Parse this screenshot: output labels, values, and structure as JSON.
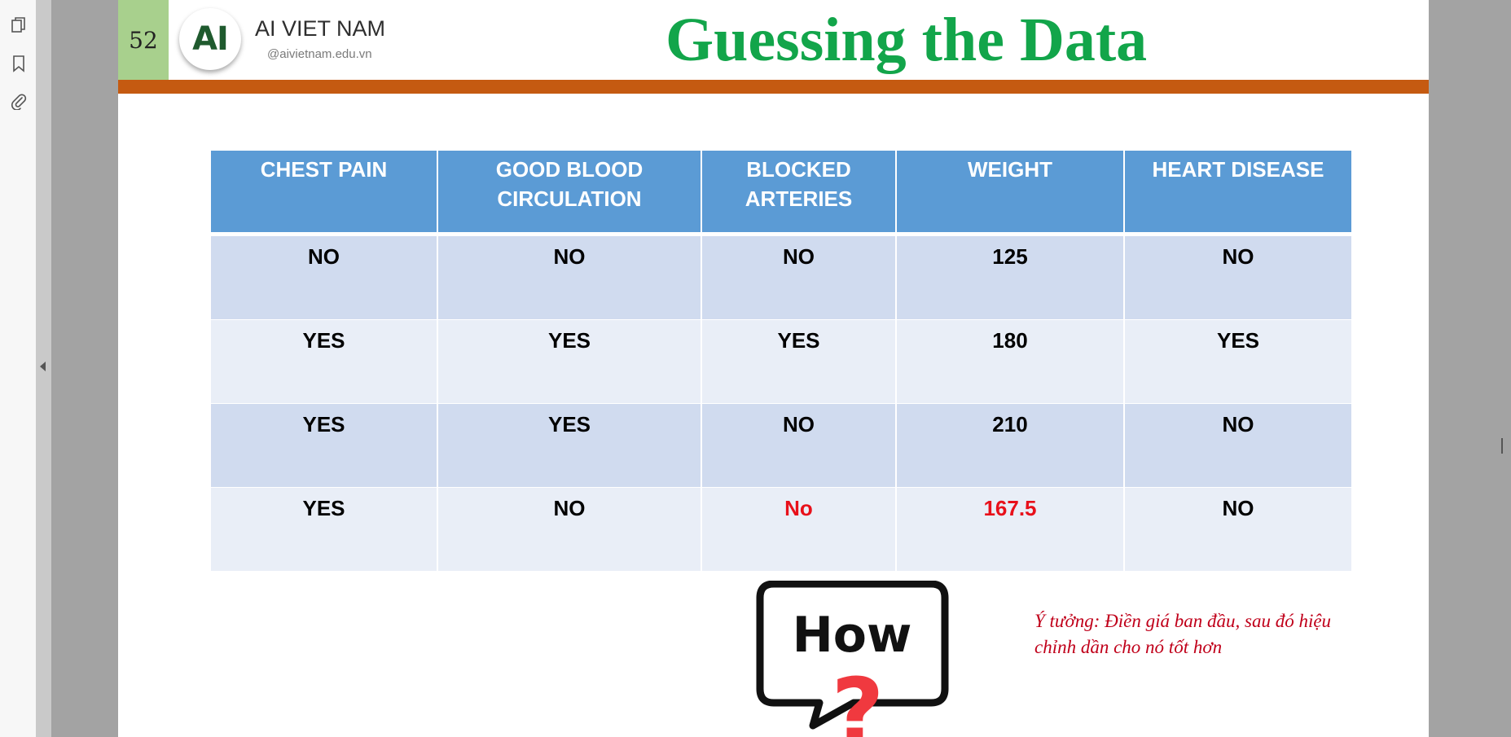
{
  "viewer": {
    "sidebar_icons": [
      "pages-icon",
      "bookmark-icon",
      "paperclip-icon"
    ]
  },
  "slide": {
    "page_number": "52",
    "logo_text": "AI",
    "brand_name": "AI VIET NAM",
    "brand_handle": "@aivietnam.edu.vn",
    "title": "Guessing the Data",
    "table": {
      "headers": [
        "CHEST PAIN",
        "GOOD BLOOD CIRCULATION",
        "BLOCKED ARTERIES",
        "WEIGHT",
        "HEART DISEASE"
      ],
      "rows": [
        [
          "NO",
          "NO",
          "NO",
          "125",
          "NO"
        ],
        [
          "YES",
          "YES",
          "YES",
          "180",
          "YES"
        ],
        [
          "YES",
          "YES",
          "NO",
          "210",
          "NO"
        ],
        [
          "YES",
          "NO",
          "No",
          "167.5",
          "NO"
        ]
      ],
      "highlighted_cells_color": "#e8101a"
    },
    "how_text": "How",
    "how_mark": "?",
    "note": "Ý tưởng: Điền giá ban đầu, sau đó hiệu chỉnh dần cho nó tốt hơn"
  },
  "colors": {
    "title": "#12a54a",
    "band": "#c55a11",
    "header_bg": "#5b9bd5",
    "note": "#c0001a"
  }
}
